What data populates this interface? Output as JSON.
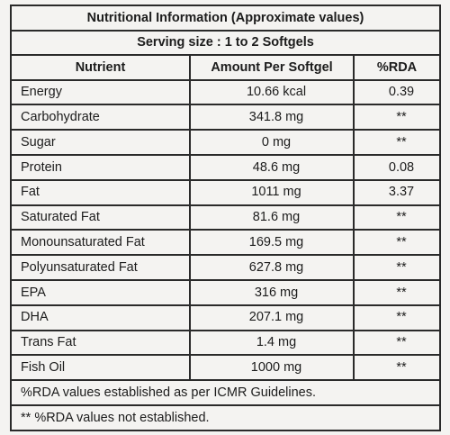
{
  "table": {
    "title": "Nutritional Information (Approximate values)",
    "serving": "Serving size : 1 to 2 Softgels",
    "headers": {
      "nutrient": "Nutrient",
      "amount": "Amount Per Softgel",
      "rda": "%RDA"
    },
    "rows": [
      {
        "nutrient": "Energy",
        "amount": "10.66 kcal",
        "rda": "0.39"
      },
      {
        "nutrient": "Carbohydrate",
        "amount": "341.8 mg",
        "rda": "**"
      },
      {
        "nutrient": "Sugar",
        "amount": "0 mg",
        "rda": "**"
      },
      {
        "nutrient": "Protein",
        "amount": "48.6 mg",
        "rda": "0.08"
      },
      {
        "nutrient": "Fat",
        "amount": "1011 mg",
        "rda": "3.37"
      },
      {
        "nutrient": "Saturated Fat",
        "amount": "81.6 mg",
        "rda": "**"
      },
      {
        "nutrient": "Monounsaturated Fat",
        "amount": "169.5 mg",
        "rda": "**"
      },
      {
        "nutrient": "Polyunsaturated Fat",
        "amount": "627.8 mg",
        "rda": "**"
      },
      {
        "nutrient": "EPA",
        "amount": "316 mg",
        "rda": "**"
      },
      {
        "nutrient": "DHA",
        "amount": "207.1 mg",
        "rda": "**"
      },
      {
        "nutrient": "Trans Fat",
        "amount": "1.4 mg",
        "rda": "**"
      },
      {
        "nutrient": "Fish Oil",
        "amount": "1000 mg",
        "rda": "**"
      }
    ],
    "footnotes": [
      "%RDA values established as per ICMR Guidelines.",
      "** %RDA values not established."
    ]
  }
}
